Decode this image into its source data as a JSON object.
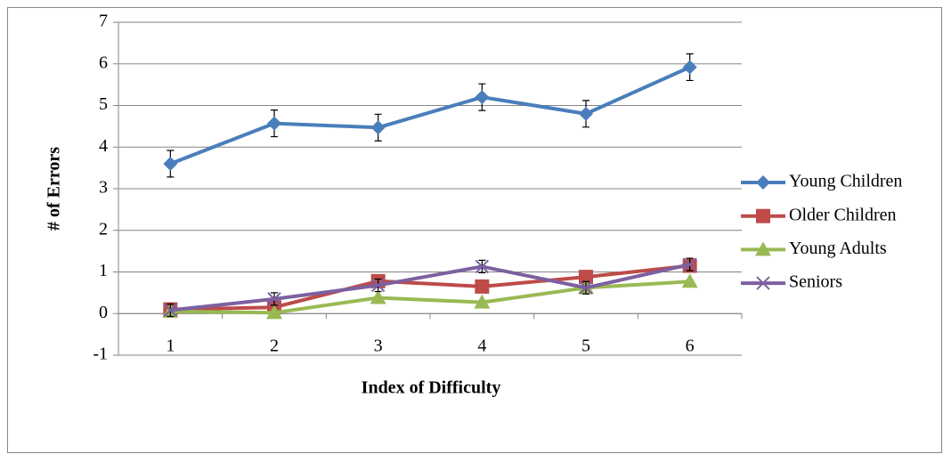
{
  "chart_data": {
    "type": "line",
    "x_label": "Index of Difficulty",
    "y_label": "# of Errors",
    "categories": [
      "1",
      "2",
      "3",
      "4",
      "5",
      "6"
    ],
    "ylim": [
      -1,
      7
    ],
    "yticks": [
      -1,
      0,
      1,
      2,
      3,
      4,
      5,
      6,
      7
    ],
    "grid": true,
    "legend": "right",
    "series": [
      {
        "name": "Young Children",
        "color": "#4a7ebb",
        "marker": "diamond",
        "values": [
          3.6,
          4.57,
          4.47,
          5.2,
          4.8,
          5.92
        ],
        "errors": [
          0.32,
          0.32,
          0.32,
          0.32,
          0.32,
          0.32
        ]
      },
      {
        "name": "Older Children",
        "color": "#be4b48",
        "marker": "square",
        "values": [
          0.1,
          0.15,
          0.78,
          0.65,
          0.88,
          1.15
        ]
      },
      {
        "name": "Young Adults",
        "color": "#98b954",
        "marker": "triangle",
        "values": [
          0.05,
          0.02,
          0.38,
          0.27,
          0.62,
          0.77
        ]
      },
      {
        "name": "Seniors",
        "color": "#7d60a0",
        "marker": "x",
        "values": [
          0.08,
          0.35,
          0.68,
          1.13,
          0.62,
          1.18
        ],
        "errors": [
          0.15,
          0.15,
          0.15,
          0.15,
          0.15,
          0.15
        ]
      }
    ]
  }
}
